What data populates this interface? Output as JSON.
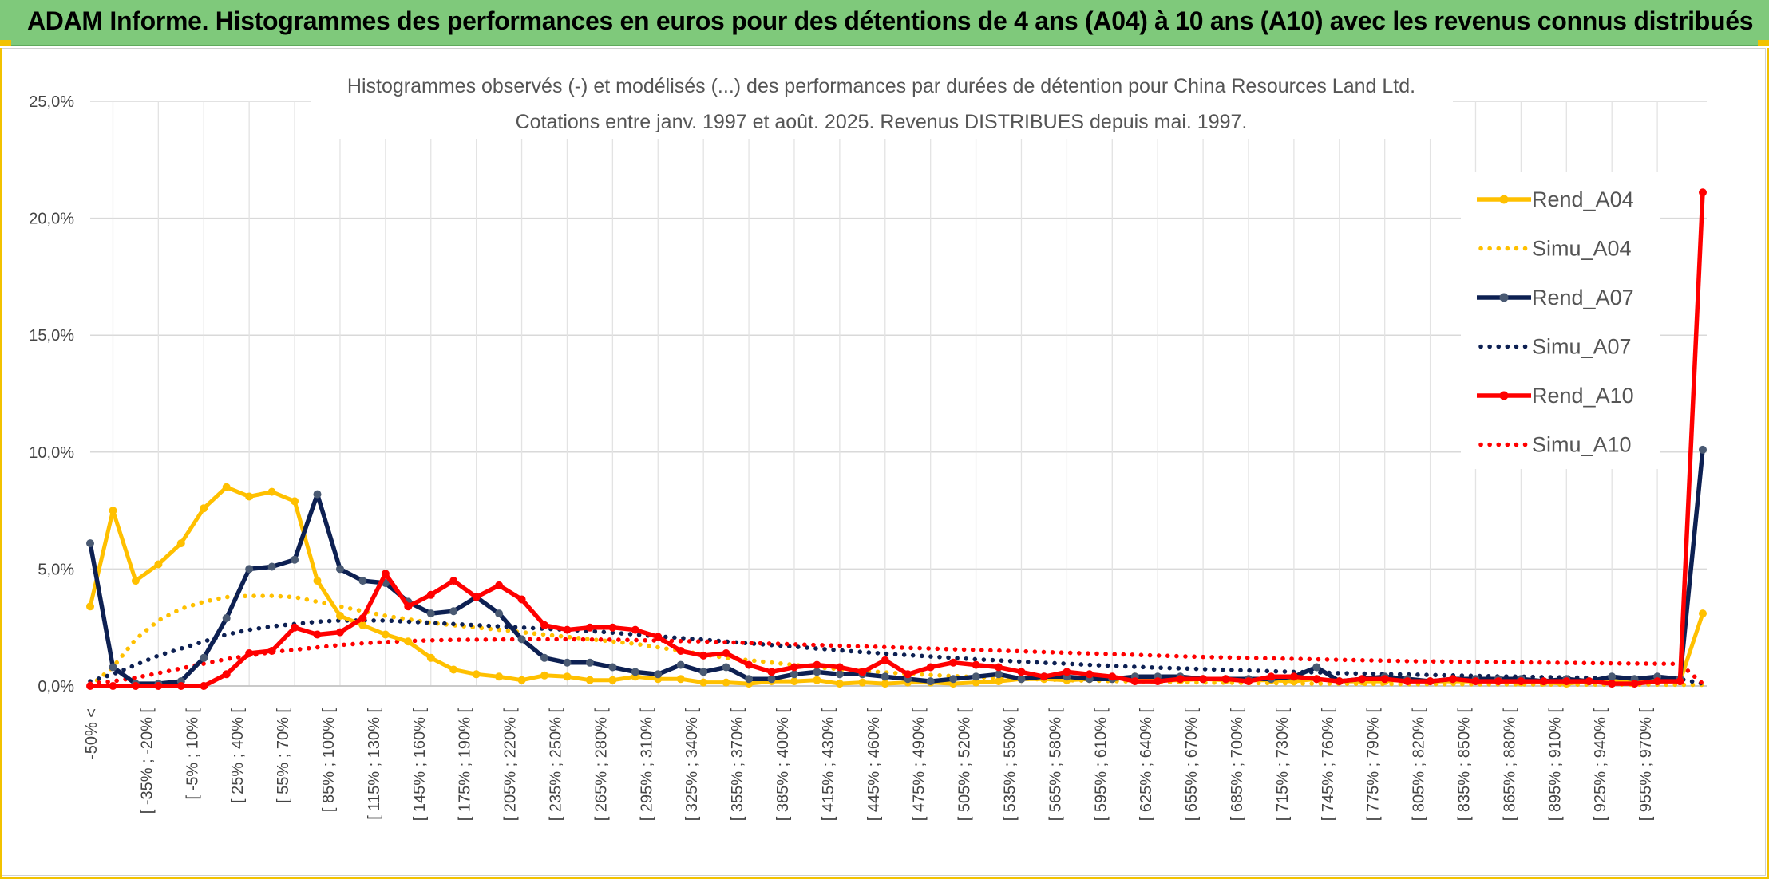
{
  "header": {
    "title": "ADAM Informe. Histogrammes des performances en euros pour des détentions de 4 ans (A04) à 10 ans (A10) avec les revenus connus distribués"
  },
  "chart_data": {
    "type": "line",
    "title": "Histogrammes observés (-) et modélisés (...) des performances par durées de détention pour China Resources Land Ltd.",
    "subtitle": "Cotations entre janv. 1997 et août. 2025. Revenus DISTRIBUES depuis mai. 1997.",
    "xlabel": "",
    "ylabel": "",
    "ylim": [
      0,
      25
    ],
    "yticks": [
      "0,0%",
      "5,0%",
      "10,0%",
      "15,0%",
      "20,0%",
      "25,0%"
    ],
    "grid": true,
    "legend_position": "right",
    "x_tick_labels": [
      "-50% <",
      "[ -35% ; -20% [",
      "[ -5% ; 10% [",
      "[ 25% ; 40% [",
      "[ 55% ; 70% [",
      "[ 85% ; 100% [",
      "[ 115% ; 130% [",
      "[ 145% ; 160% [",
      "[ 175% ; 190% [",
      "[ 205% ; 220% [",
      "[ 235% ; 250% [",
      "[ 265% ; 280% [",
      "[ 295% ; 310% [",
      "[ 325% ; 340% [",
      "[ 355% ; 370% [",
      "[ 385% ; 400% [",
      "[ 415% ; 430% [",
      "[ 445% ; 460% [",
      "[ 475% ; 490% [",
      "[ 505% ; 520% [",
      "[ 535% ; 550% [",
      "[ 565% ; 580% [",
      "[ 595% ; 610% [",
      "[ 625% ; 640% [",
      "[ 655% ; 670% [",
      "[ 685% ; 700% [",
      "[ 715% ; 730% [",
      "[ 745% ; 760% [",
      "[ 775% ; 790% [",
      "[ 805% ; 820% [",
      "[ 835% ; 850% [",
      "[ 865% ; 880% [",
      "[ 895% ; 910% [",
      "[ 925% ; 940% [",
      "[ 955% ; 970% ["
    ],
    "num_points": 72,
    "series": [
      {
        "name": "Rend_A04",
        "style": "solid",
        "color": "#ffc000",
        "values": [
          3.4,
          7.5,
          4.5,
          5.2,
          6.1,
          7.6,
          8.5,
          8.1,
          8.3,
          7.9,
          4.5,
          3.0,
          2.6,
          2.2,
          1.9,
          1.2,
          0.7,
          0.5,
          0.4,
          0.25,
          0.45,
          0.4,
          0.25,
          0.25,
          0.4,
          0.3,
          0.3,
          0.15,
          0.15,
          0.1,
          0.2,
          0.2,
          0.25,
          0.1,
          0.15,
          0.1,
          0.15,
          0.15,
          0.1,
          0.15,
          0.2,
          0.3,
          0.3,
          0.25,
          0.3,
          0.3,
          0.4,
          0.25,
          0.25,
          0.3,
          0.25,
          0.25,
          0.25,
          0.2,
          0.3,
          0.2,
          0.2,
          0.2,
          0.3,
          0.2,
          0.2,
          0.2,
          0.2,
          0.15,
          0.15,
          0.1,
          0.2,
          0.2,
          0.2,
          0.2,
          0.2,
          3.1
        ]
      },
      {
        "name": "Simu_A04",
        "style": "dotted",
        "color": "#ffc000",
        "values": [
          0.0,
          0.8,
          2.0,
          2.8,
          3.3,
          3.6,
          3.8,
          3.85,
          3.85,
          3.8,
          3.6,
          3.4,
          3.2,
          3.0,
          2.85,
          2.7,
          2.6,
          2.5,
          2.4,
          2.3,
          2.2,
          2.1,
          2.0,
          1.9,
          1.8,
          1.65,
          1.5,
          1.35,
          1.2,
          1.1,
          1.0,
          0.9,
          0.8,
          0.72,
          0.65,
          0.58,
          0.52,
          0.47,
          0.42,
          0.38,
          0.34,
          0.31,
          0.28,
          0.25,
          0.23,
          0.21,
          0.19,
          0.17,
          0.16,
          0.15,
          0.14,
          0.13,
          0.12,
          0.11,
          0.1,
          0.1,
          0.09,
          0.09,
          0.08,
          0.08,
          0.08,
          0.07,
          0.07,
          0.07,
          0.06,
          0.06,
          0.06,
          0.06,
          0.06,
          0.06,
          0.05,
          0.05
        ]
      },
      {
        "name": "Rend_A07",
        "style": "solid",
        "color": "#0d2052",
        "values": [
          6.1,
          0.8,
          0.1,
          0.1,
          0.2,
          1.2,
          2.9,
          5.0,
          5.1,
          5.4,
          8.2,
          5.0,
          4.5,
          4.4,
          3.6,
          3.1,
          3.2,
          3.8,
          3.1,
          2.0,
          1.2,
          1.0,
          1.0,
          0.8,
          0.6,
          0.5,
          0.9,
          0.6,
          0.8,
          0.3,
          0.3,
          0.5,
          0.6,
          0.5,
          0.5,
          0.4,
          0.3,
          0.2,
          0.3,
          0.4,
          0.5,
          0.3,
          0.4,
          0.4,
          0.3,
          0.3,
          0.4,
          0.4,
          0.4,
          0.3,
          0.3,
          0.3,
          0.3,
          0.4,
          0.8,
          0.2,
          0.3,
          0.4,
          0.3,
          0.2,
          0.3,
          0.3,
          0.3,
          0.3,
          0.2,
          0.3,
          0.2,
          0.4,
          0.3,
          0.4,
          0.3,
          10.1
        ]
      },
      {
        "name": "Simu_A07",
        "style": "dotted",
        "color": "#0d2052",
        "values": [
          0.2,
          0.5,
          0.9,
          1.3,
          1.6,
          1.9,
          2.2,
          2.4,
          2.55,
          2.65,
          2.75,
          2.8,
          2.8,
          2.8,
          2.75,
          2.7,
          2.65,
          2.6,
          2.55,
          2.5,
          2.45,
          2.4,
          2.35,
          2.28,
          2.2,
          2.12,
          2.05,
          1.98,
          1.9,
          1.82,
          1.75,
          1.68,
          1.6,
          1.52,
          1.45,
          1.38,
          1.32,
          1.26,
          1.2,
          1.14,
          1.09,
          1.04,
          0.99,
          0.95,
          0.9,
          0.86,
          0.82,
          0.78,
          0.75,
          0.72,
          0.69,
          0.66,
          0.63,
          0.6,
          0.58,
          0.55,
          0.53,
          0.51,
          0.49,
          0.47,
          0.45,
          0.43,
          0.41,
          0.4,
          0.38,
          0.37,
          0.35,
          0.34,
          0.33,
          0.32,
          0.3,
          0.1
        ]
      },
      {
        "name": "Rend_A10",
        "style": "solid",
        "color": "#ff0000",
        "values": [
          0.0,
          0.0,
          0.0,
          0.0,
          0.0,
          0.0,
          0.5,
          1.4,
          1.5,
          2.5,
          2.2,
          2.3,
          2.9,
          4.8,
          3.4,
          3.9,
          4.5,
          3.8,
          4.3,
          3.7,
          2.6,
          2.4,
          2.5,
          2.5,
          2.4,
          2.1,
          1.5,
          1.3,
          1.4,
          0.9,
          0.6,
          0.8,
          0.9,
          0.8,
          0.6,
          1.1,
          0.5,
          0.8,
          1.0,
          0.9,
          0.8,
          0.6,
          0.4,
          0.6,
          0.5,
          0.4,
          0.2,
          0.2,
          0.3,
          0.3,
          0.3,
          0.2,
          0.4,
          0.4,
          0.3,
          0.2,
          0.3,
          0.3,
          0.2,
          0.2,
          0.3,
          0.2,
          0.2,
          0.2,
          0.2,
          0.2,
          0.2,
          0.1,
          0.1,
          0.2,
          0.2,
          21.1
        ]
      },
      {
        "name": "Simu_A10",
        "style": "dotted",
        "color": "#ff0000",
        "values": [
          0.1,
          0.2,
          0.35,
          0.55,
          0.75,
          0.95,
          1.15,
          1.3,
          1.45,
          1.55,
          1.65,
          1.75,
          1.82,
          1.88,
          1.92,
          1.95,
          1.97,
          1.98,
          1.99,
          2.0,
          2.0,
          2.0,
          1.99,
          1.98,
          1.96,
          1.94,
          1.92,
          1.9,
          1.87,
          1.84,
          1.81,
          1.78,
          1.75,
          1.72,
          1.69,
          1.66,
          1.63,
          1.6,
          1.57,
          1.54,
          1.51,
          1.48,
          1.45,
          1.42,
          1.39,
          1.36,
          1.33,
          1.3,
          1.27,
          1.24,
          1.22,
          1.2,
          1.18,
          1.16,
          1.14,
          1.12,
          1.1,
          1.08,
          1.06,
          1.05,
          1.04,
          1.03,
          1.02,
          1.01,
          1.0,
          0.99,
          0.98,
          0.97,
          0.96,
          0.95,
          0.94,
          0.1
        ]
      }
    ]
  }
}
